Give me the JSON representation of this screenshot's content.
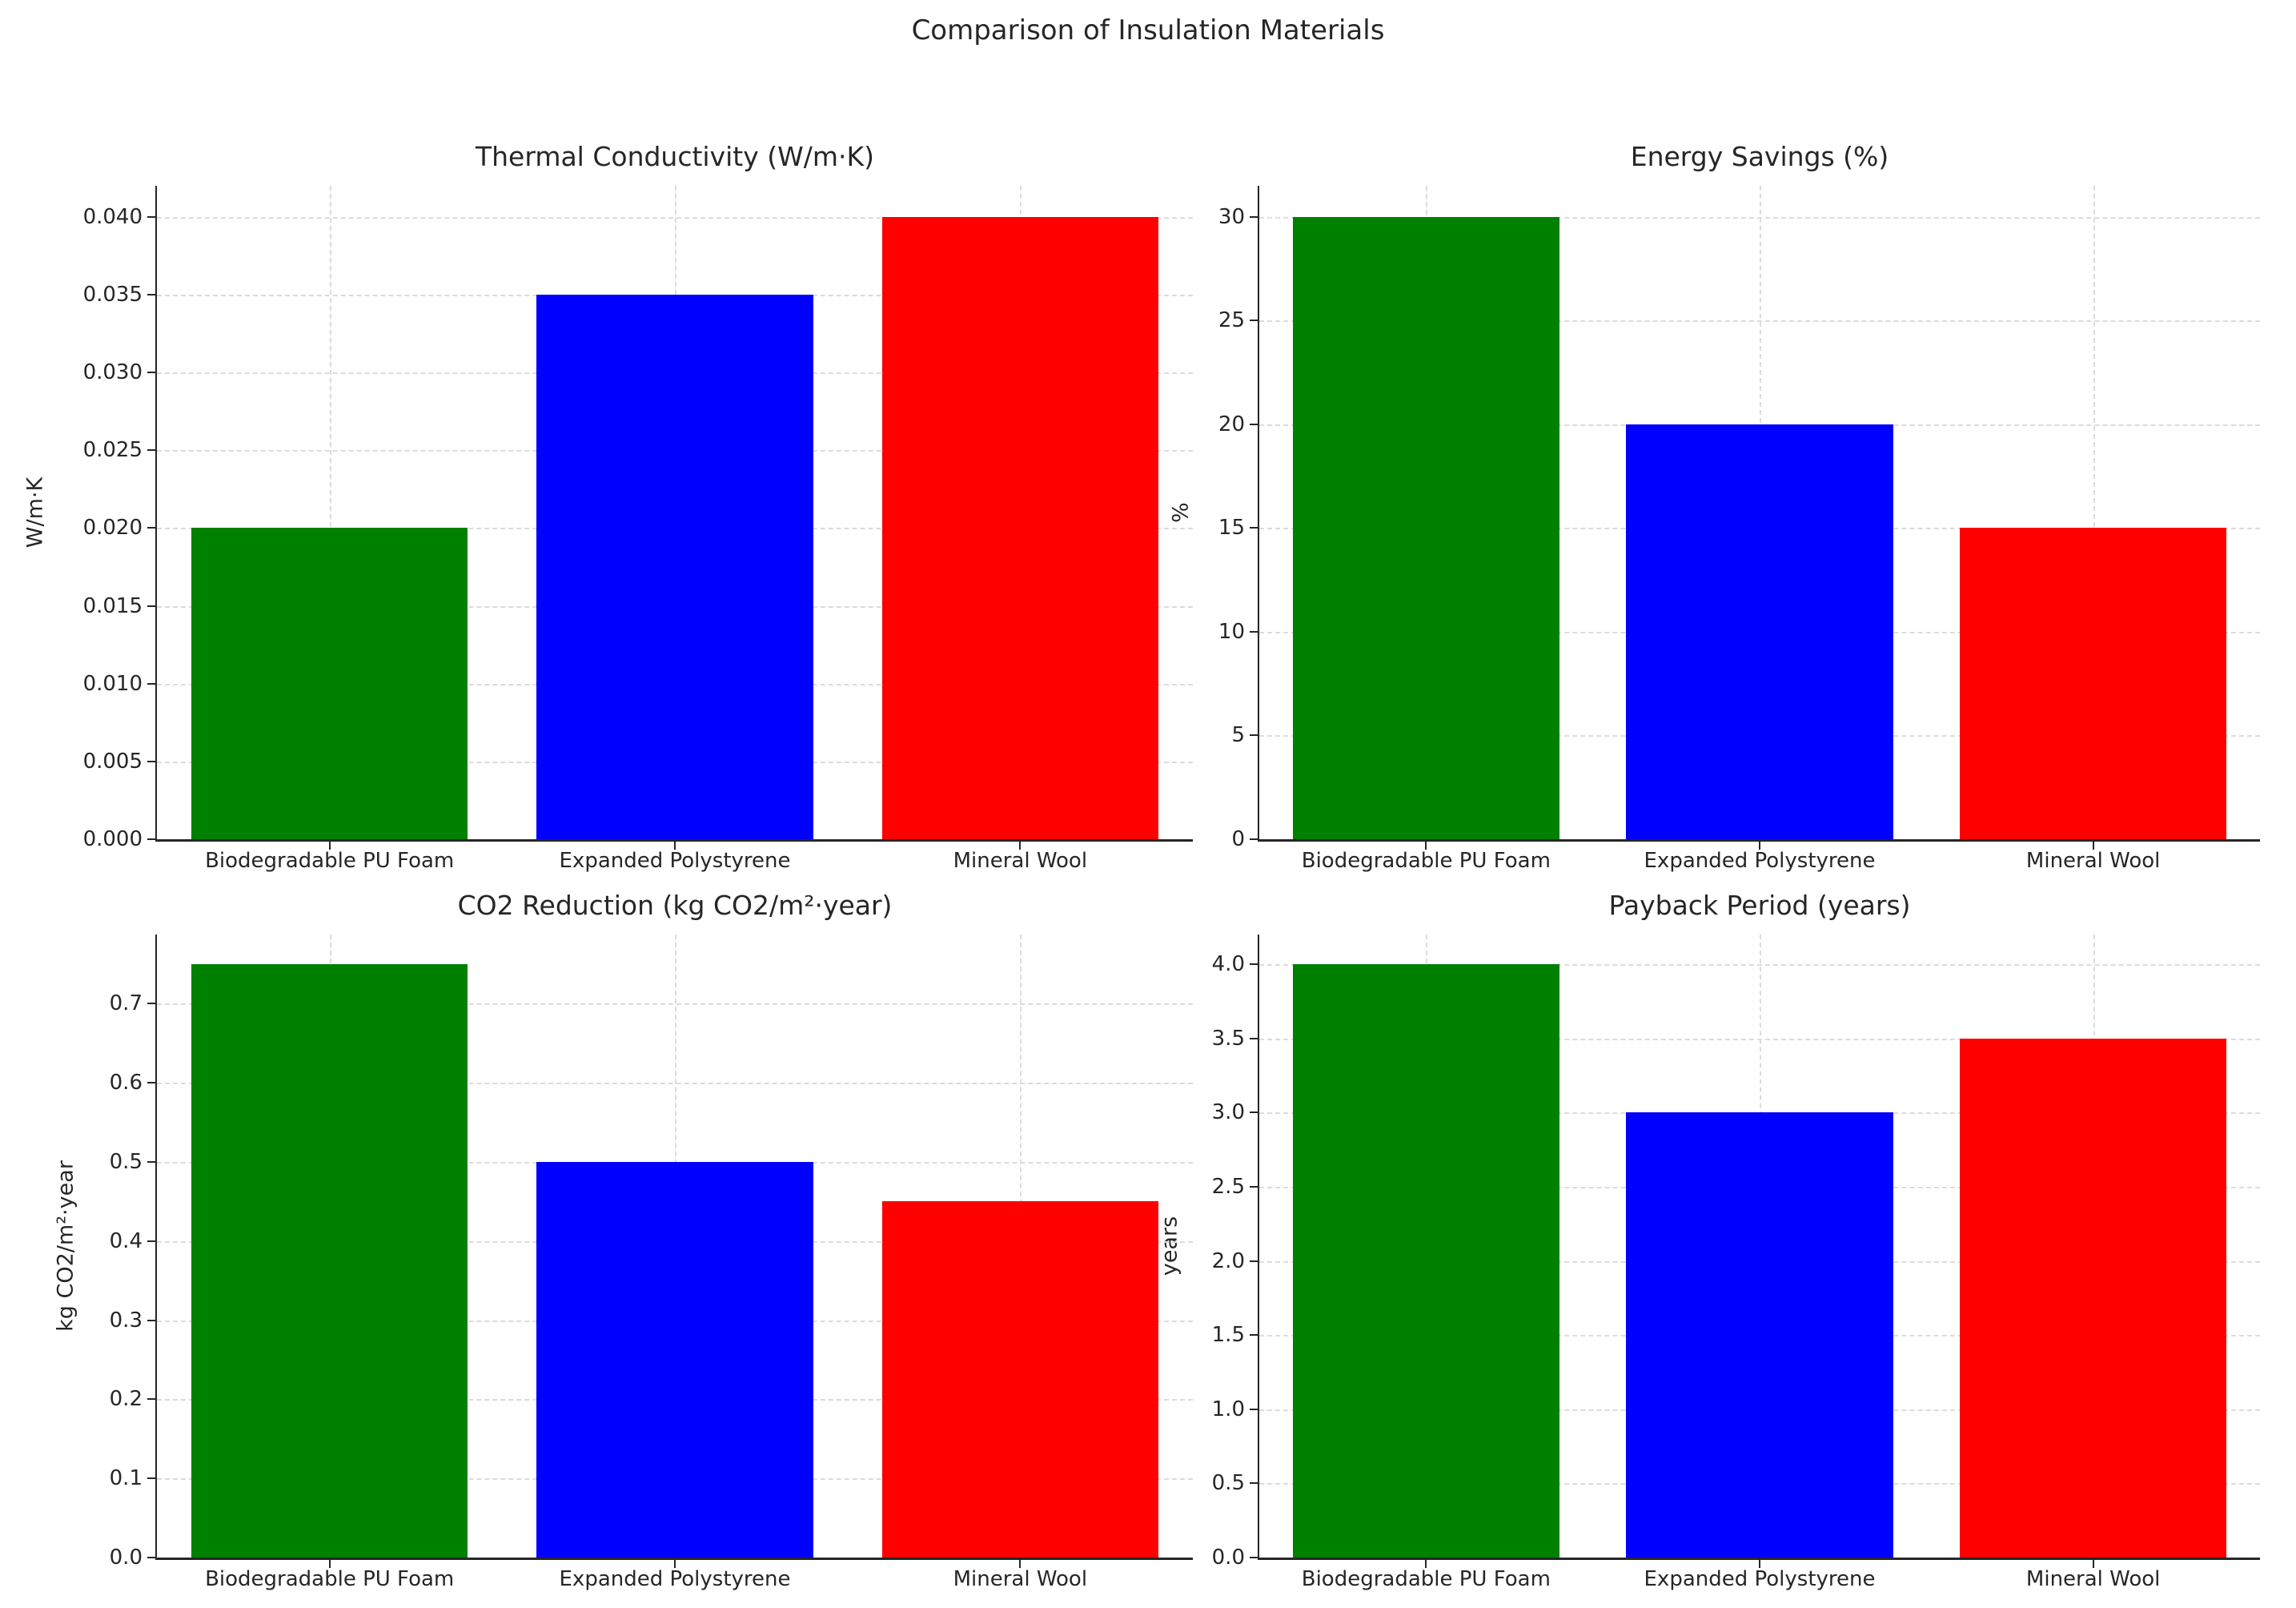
{
  "figure": {
    "suptitle": "Comparison of Insulation Materials"
  },
  "categories": [
    "Biodegradable PU Foam",
    "Expanded Polystyrene",
    "Mineral Wool"
  ],
  "bar_colors": [
    "#008000",
    "#0000ff",
    "#ff0000"
  ],
  "grid_color": "#dcdcdc",
  "text_color": "#262626",
  "chart_data": [
    {
      "type": "bar",
      "title": "Thermal Conductivity (W/m·K)",
      "ylabel": "W/m·K",
      "categories": [
        "Biodegradable PU Foam",
        "Expanded Polystyrene",
        "Mineral Wool"
      ],
      "values": [
        0.02,
        0.035,
        0.04
      ],
      "colors": [
        "#008000",
        "#0000ff",
        "#ff0000"
      ],
      "ylim": [
        0,
        0.042
      ],
      "yticks": [
        0,
        0.005,
        0.01,
        0.015,
        0.02,
        0.025,
        0.03,
        0.035,
        0.04
      ],
      "ytick_labels": [
        "0.000",
        "0.005",
        "0.010",
        "0.015",
        "0.020",
        "0.025",
        "0.030",
        "0.035",
        "0.040"
      ],
      "grid": true,
      "legend": false
    },
    {
      "type": "bar",
      "title": "Energy Savings (%)",
      "ylabel": "%",
      "categories": [
        "Biodegradable PU Foam",
        "Expanded Polystyrene",
        "Mineral Wool"
      ],
      "values": [
        30,
        20,
        15
      ],
      "colors": [
        "#008000",
        "#0000ff",
        "#ff0000"
      ],
      "ylim": [
        0,
        31.5
      ],
      "yticks": [
        0,
        5,
        10,
        15,
        20,
        25,
        30
      ],
      "ytick_labels": [
        "0",
        "5",
        "10",
        "15",
        "20",
        "25",
        "30"
      ],
      "grid": true,
      "legend": false
    },
    {
      "type": "bar",
      "title": "CO2 Reduction (kg CO2/m²·year)",
      "ylabel": "kg CO2/m²·year",
      "categories": [
        "Biodegradable PU Foam",
        "Expanded Polystyrene",
        "Mineral Wool"
      ],
      "values": [
        0.75,
        0.5,
        0.45
      ],
      "colors": [
        "#008000",
        "#0000ff",
        "#ff0000"
      ],
      "ylim": [
        0,
        0.7875
      ],
      "yticks": [
        0,
        0.1,
        0.2,
        0.3,
        0.4,
        0.5,
        0.6,
        0.7
      ],
      "ytick_labels": [
        "0.0",
        "0.1",
        "0.2",
        "0.3",
        "0.4",
        "0.5",
        "0.6",
        "0.7"
      ],
      "grid": true,
      "legend": false
    },
    {
      "type": "bar",
      "title": "Payback Period (years)",
      "ylabel": "years",
      "categories": [
        "Biodegradable PU Foam",
        "Expanded Polystyrene",
        "Mineral Wool"
      ],
      "values": [
        4.0,
        3.0,
        3.5
      ],
      "colors": [
        "#008000",
        "#0000ff",
        "#ff0000"
      ],
      "ylim": [
        0,
        4.2
      ],
      "yticks": [
        0,
        0.5,
        1.0,
        1.5,
        2.0,
        2.5,
        3.0,
        3.5,
        4.0
      ],
      "ytick_labels": [
        "0.0",
        "0.5",
        "1.0",
        "1.5",
        "2.0",
        "2.5",
        "3.0",
        "3.5",
        "4.0"
      ],
      "grid": true,
      "legend": false
    }
  ]
}
